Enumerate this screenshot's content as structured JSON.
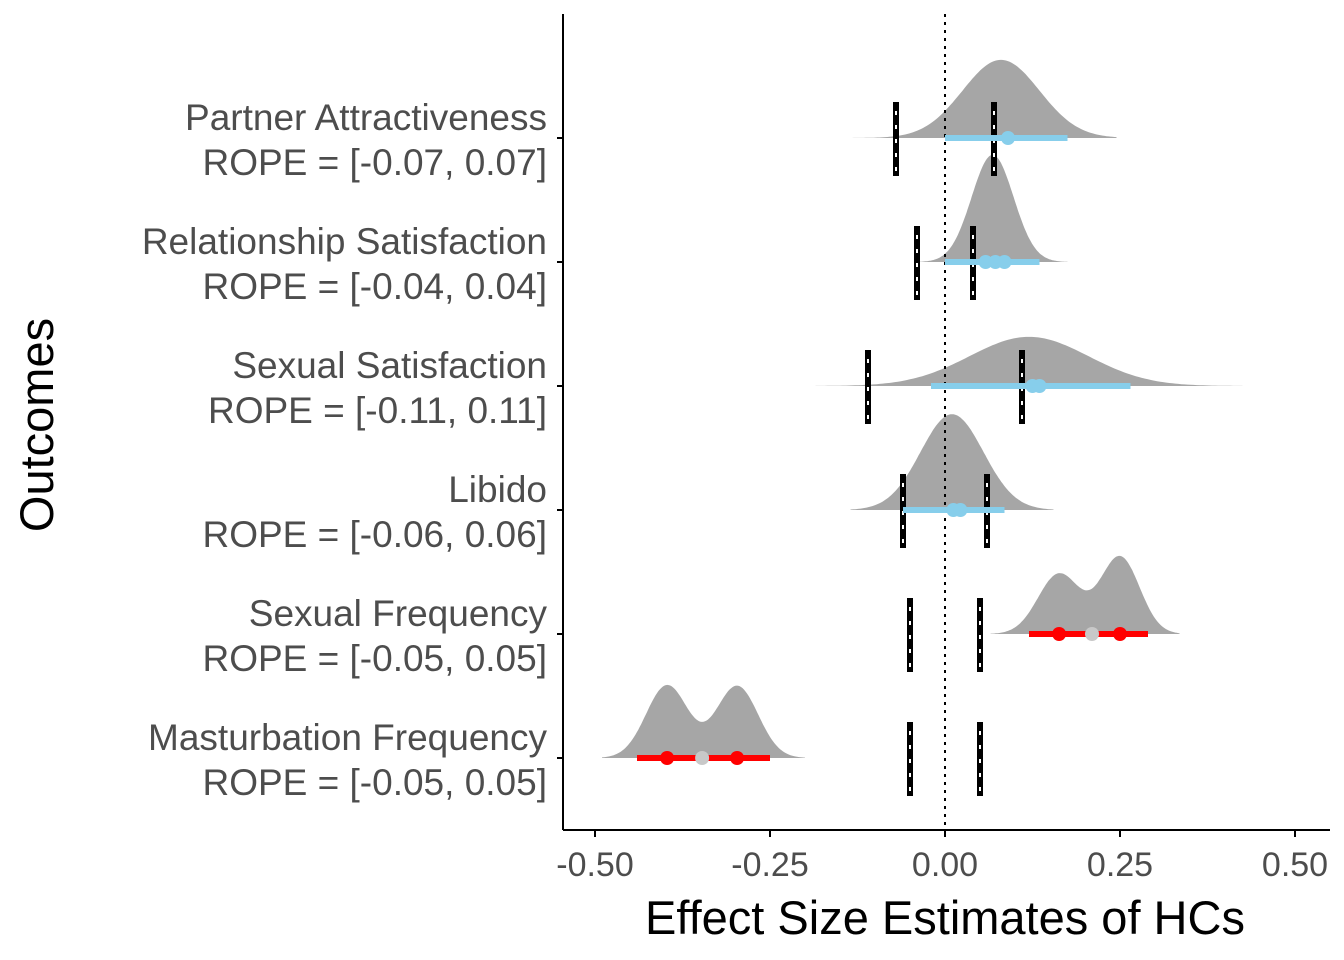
{
  "chart_data": {
    "type": "ridgeline-interval",
    "xlabel": "Effect Size Estimates of HCs",
    "ylabel": "Outcomes",
    "xlim": [
      -0.55,
      0.55
    ],
    "xticks": [
      -0.5,
      -0.25,
      0.0,
      0.25,
      0.5
    ],
    "xtick_labels": [
      "-0.50",
      "-0.25",
      "0.00",
      "0.25",
      "0.50"
    ],
    "reference_line_x": 0,
    "colors": {
      "density": "#a6a6a6",
      "interval_null": "#87ceeb",
      "interval_effect": "#ff0000",
      "median_effect": "#c8c8c8",
      "rope_line": "#000000",
      "rope_dash": "#ffffff",
      "axis": "#000000",
      "text": "#4d4d4d"
    },
    "categories": [
      {
        "name": "Partner Attractiveness",
        "rope_label": "ROPE = [-0.07, 0.07]",
        "rope": [
          -0.07,
          0.07
        ],
        "density_range": [
          -0.15,
          0.245
        ],
        "peaks": [
          {
            "x": 0.08,
            "sd": 0.055,
            "w": 1.0
          }
        ],
        "height": 0.62,
        "interval": [
          0.0,
          0.175
        ],
        "points": [
          0.09
        ],
        "significant": false
      },
      {
        "name": "Relationship Satisfaction",
        "rope_label": "ROPE = [-0.04, 0.04]",
        "rope": [
          -0.04,
          0.04
        ],
        "density_range": [
          -0.04,
          0.175
        ],
        "peaks": [
          {
            "x": 0.068,
            "sd": 0.03,
            "w": 1.0
          }
        ],
        "height": 0.85,
        "interval": [
          0.0,
          0.135
        ],
        "points": [
          0.058,
          0.072,
          0.085
        ],
        "significant": false
      },
      {
        "name": "Sexual Satisfaction",
        "rope_label": "ROPE = [-0.11, 0.11]",
        "rope": [
          -0.11,
          0.11
        ],
        "density_range": [
          -0.185,
          0.425
        ],
        "peaks": [
          {
            "x": 0.12,
            "sd": 0.085,
            "w": 1.0
          }
        ],
        "height": 0.39,
        "interval": [
          -0.02,
          0.265
        ],
        "points": [
          0.125,
          0.135
        ],
        "significant": false
      },
      {
        "name": "Libido",
        "rope_label": "ROPE = [-0.06, 0.06]",
        "rope": [
          -0.06,
          0.06
        ],
        "density_range": [
          -0.135,
          0.155
        ],
        "peaks": [
          {
            "x": 0.01,
            "sd": 0.045,
            "w": 1.0
          }
        ],
        "height": 0.76,
        "interval": [
          -0.06,
          0.085
        ],
        "points": [
          0.012,
          0.022
        ],
        "significant": false
      },
      {
        "name": "Sexual Frequency",
        "rope_label": "ROPE = [-0.05, 0.05]",
        "rope": [
          -0.05,
          0.05
        ],
        "density_range": [
          0.065,
          0.335
        ],
        "peaks": [
          {
            "x": 0.163,
            "sd": 0.03,
            "w": 0.78
          },
          {
            "x": 0.25,
            "sd": 0.028,
            "w": 1.0
          }
        ],
        "height": 0.62,
        "interval": [
          0.12,
          0.29
        ],
        "points": [
          0.163,
          0.25
        ],
        "center": 0.21,
        "significant": true
      },
      {
        "name": "Masturbation Frequency",
        "rope_label": "ROPE = [-0.05, 0.05]",
        "rope": [
          -0.05,
          0.05
        ],
        "density_range": [
          -0.49,
          -0.2
        ],
        "peaks": [
          {
            "x": -0.397,
            "sd": 0.03,
            "w": 1.0
          },
          {
            "x": -0.297,
            "sd": 0.03,
            "w": 0.99
          }
        ],
        "height": 0.58,
        "interval": [
          -0.44,
          -0.25
        ],
        "points": [
          -0.397,
          -0.297
        ],
        "center": -0.347,
        "significant": true
      }
    ]
  }
}
